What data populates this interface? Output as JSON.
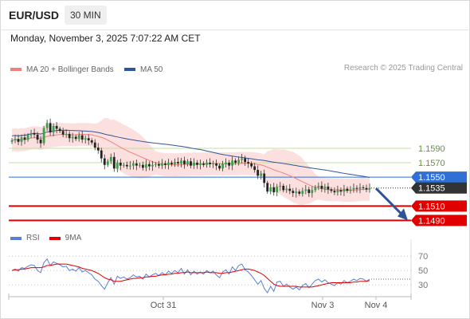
{
  "header": {
    "symbol": "EUR/USD",
    "timeframe": "30 MIN",
    "datetime": "Monday, November 3, 2025 7:07:22 AM CET"
  },
  "legend": {
    "ma20_label": "MA 20 + Bollinger Bands",
    "ma20_color": "#f08080",
    "ma50_label": "MA 50",
    "ma50_color": "#2f5597",
    "credit": "Research © 2025 Trading Central"
  },
  "rsi_legend": {
    "rsi_label": "RSI",
    "rsi_color": "#5b7fd6",
    "ma_label": "9MA",
    "ma_color": "#e00000"
  },
  "chart_data": {
    "type": "candlestick",
    "ylim": [
      1.1475,
      1.1685
    ],
    "price_axis_labels": [
      {
        "value": 1.159,
        "label": "1.1590",
        "style": "resistance-light"
      },
      {
        "value": 1.157,
        "label": "1.1570",
        "style": "resistance-light"
      },
      {
        "value": 1.155,
        "label": "1.1550",
        "style": "pivot"
      },
      {
        "value": 1.1535,
        "label": "1.1535",
        "style": "current"
      },
      {
        "value": 1.151,
        "label": "1.1510",
        "style": "support"
      },
      {
        "value": 1.149,
        "label": "1.1490",
        "style": "support"
      }
    ],
    "x_labels": [
      "Oct 31",
      "Nov 3",
      "Nov 4"
    ],
    "closes": [
      1.1601,
      1.1603,
      1.1599,
      1.1605,
      1.1602,
      1.1608,
      1.1611,
      1.1609,
      1.1602,
      1.1597,
      1.1618,
      1.1625,
      1.1612,
      1.1621,
      1.1617,
      1.1614,
      1.1609,
      1.161,
      1.1604,
      1.1606,
      1.1603,
      1.1608,
      1.1602,
      1.1604,
      1.1601,
      1.1598,
      1.1591,
      1.1587,
      1.1576,
      1.1567,
      1.1572,
      1.1578,
      1.1562,
      1.157,
      1.1566,
      1.1567,
      1.1565,
      1.1566,
      1.1569,
      1.1566,
      1.1567,
      1.1563,
      1.1568,
      1.1565,
      1.1567,
      1.1568,
      1.1566,
      1.1569,
      1.1567,
      1.157,
      1.1568,
      1.1571,
      1.1569,
      1.1573,
      1.1568,
      1.1572,
      1.1566,
      1.157,
      1.1567,
      1.1569,
      1.1567,
      1.157,
      1.1568,
      1.1569,
      1.1566,
      1.1562,
      1.1568,
      1.157,
      1.1566,
      1.1573,
      1.157,
      1.1574,
      1.1576,
      1.1571,
      1.1569,
      1.1565,
      1.156,
      1.1552,
      1.1555,
      1.1542,
      1.153,
      1.1536,
      1.1529,
      1.1537,
      1.1538,
      1.1532,
      1.1534,
      1.1531,
      1.1528,
      1.153,
      1.1527,
      1.1531,
      1.1533,
      1.1528,
      1.1532,
      1.1536,
      1.1538,
      1.1534,
      1.1537,
      1.1533,
      1.1531,
      1.1529,
      1.1532,
      1.153,
      1.1534,
      1.1531,
      1.1533,
      1.1535,
      1.1534,
      1.1536,
      1.1535,
      1.1533,
      1.1535
    ],
    "rsi": {
      "ylim": [
        18,
        78
      ],
      "ticks": [
        70,
        50,
        30
      ],
      "values": [
        50,
        52,
        49,
        54,
        53,
        56,
        58,
        57,
        50,
        47,
        61,
        66,
        57,
        62,
        60,
        58,
        55,
        56,
        50,
        52,
        49,
        54,
        48,
        50,
        47,
        44,
        38,
        35,
        29,
        24,
        33,
        40,
        31,
        42,
        39,
        41,
        38,
        40,
        44,
        41,
        42,
        38,
        45,
        41,
        44,
        46,
        43,
        47,
        44,
        49,
        46,
        50,
        47,
        53,
        45,
        51,
        44,
        49,
        45,
        48,
        45,
        50,
        47,
        49,
        44,
        40,
        48,
        51,
        45,
        55,
        50,
        57,
        59,
        51,
        48,
        43,
        37,
        31,
        36,
        25,
        19,
        28,
        21,
        34,
        35,
        28,
        31,
        27,
        24,
        27,
        23,
        29,
        32,
        26,
        31,
        36,
        38,
        34,
        37,
        33,
        31,
        29,
        33,
        31,
        36,
        33,
        35,
        38,
        36,
        39,
        38,
        35,
        38
      ],
      "ma_values": [
        50,
        51,
        51,
        52,
        52,
        53,
        54,
        54,
        54,
        54,
        55,
        57,
        57,
        58,
        59,
        59,
        59,
        59,
        58,
        57,
        56,
        55,
        53,
        52,
        51,
        50,
        48,
        46,
        43,
        40,
        38,
        37,
        35,
        35,
        35,
        36,
        37,
        38,
        39,
        39,
        40,
        40,
        41,
        41,
        42,
        42,
        43,
        44,
        44,
        45,
        45,
        46,
        46,
        47,
        47,
        48,
        47,
        47,
        47,
        47,
        47,
        48,
        47,
        47,
        47,
        46,
        46,
        47,
        47,
        48,
        49,
        50,
        51,
        52,
        52,
        51,
        50,
        48,
        46,
        43,
        39,
        35,
        31,
        29,
        28,
        28,
        28,
        28,
        28,
        28,
        27,
        27,
        27,
        27,
        27,
        28,
        29,
        30,
        31,
        32,
        33,
        33,
        33,
        33,
        33,
        33,
        33,
        34,
        34,
        35,
        35,
        35,
        36
      ]
    }
  }
}
